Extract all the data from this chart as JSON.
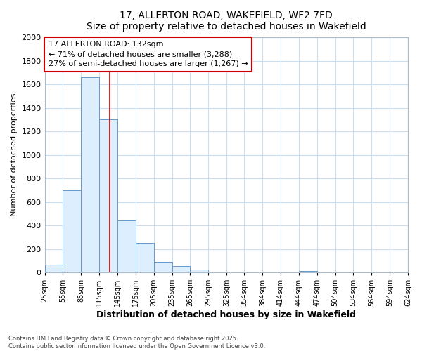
{
  "title_line1": "17, ALLERTON ROAD, WAKEFIELD, WF2 7FD",
  "title_line2": "Size of property relative to detached houses in Wakefield",
  "xlabel": "Distribution of detached houses by size in Wakefield",
  "ylabel": "Number of detached properties",
  "bar_edges": [
    25,
    55,
    85,
    115,
    145,
    175,
    205,
    235,
    265,
    295,
    325,
    354,
    384,
    414,
    444,
    474,
    504,
    534,
    564,
    594,
    624
  ],
  "bar_heights": [
    65,
    700,
    1660,
    1300,
    440,
    250,
    90,
    55,
    25,
    0,
    0,
    0,
    0,
    0,
    10,
    0,
    0,
    0,
    0,
    0
  ],
  "bar_color": "#ddeeff",
  "bar_edgecolor": "#6699cc",
  "vline_x": 132,
  "vline_color": "#cc0000",
  "ylim": [
    0,
    2000
  ],
  "yticks": [
    0,
    200,
    400,
    600,
    800,
    1000,
    1200,
    1400,
    1600,
    1800,
    2000
  ],
  "annotation_text": "17 ALLERTON ROAD: 132sqm\n← 71% of detached houses are smaller (3,288)\n27% of semi-detached houses are larger (1,267) →",
  "annotation_box_color": "#ffffff",
  "annotation_border_color": "#cc0000",
  "grid_color": "#ccddee",
  "background_color": "#ffffff",
  "fig_background_color": "#ffffff",
  "footer_line1": "Contains HM Land Registry data © Crown copyright and database right 2025.",
  "footer_line2": "Contains public sector information licensed under the Open Government Licence v3.0.",
  "tick_labels": [
    "25sqm",
    "55sqm",
    "85sqm",
    "115sqm",
    "145sqm",
    "175sqm",
    "205sqm",
    "235sqm",
    "265sqm",
    "295sqm",
    "325sqm",
    "354sqm",
    "384sqm",
    "414sqm",
    "444sqm",
    "474sqm",
    "504sqm",
    "534sqm",
    "564sqm",
    "594sqm",
    "624sqm"
  ]
}
